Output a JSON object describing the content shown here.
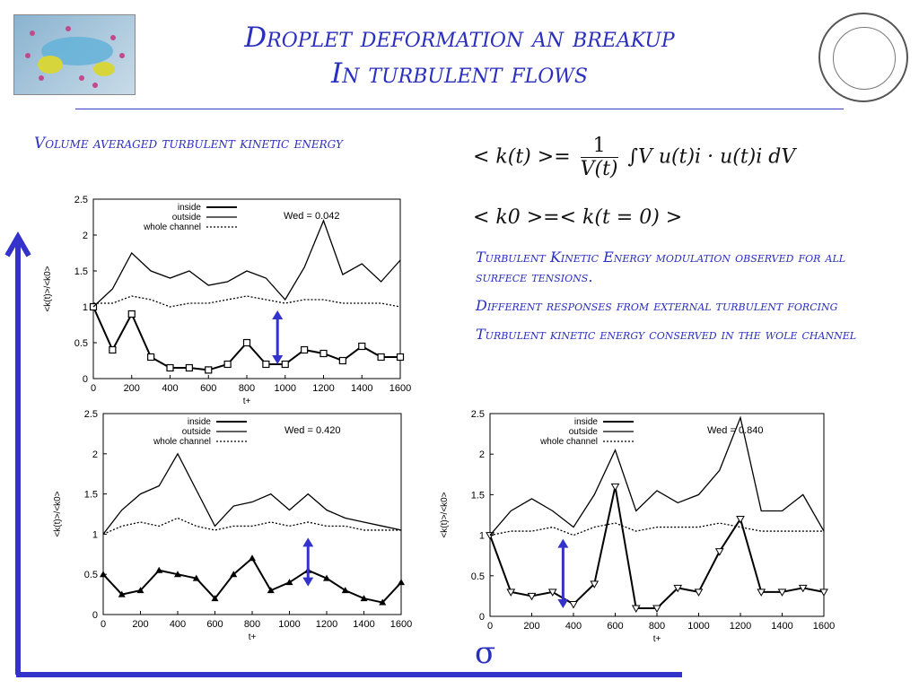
{
  "title_line1": "Droplet deformation an breakup",
  "title_line2": "In turbulent flows",
  "subtitle": "Volume averaged turbulent kinetic energy",
  "formula1_lhs": "< k(t) >=",
  "formula1_num": "1",
  "formula1_den": "V(t)",
  "formula1_rhs": "∫V u(t)i · u(t)i dV",
  "formula2": "< k0 >=< k(t = 0) >",
  "bullets": [
    "Turbulent Kinetic Energy  modulation observed for  all surfece tensions.",
    "Different responses from external turbulent forcing",
    "Turbulent kinetic energy conserved in the wole channel"
  ],
  "sigma": "σ",
  "colors": {
    "accent": "#2b2fbd",
    "arrow": "#3333cc"
  },
  "chart_data": [
    {
      "type": "line",
      "annotation": "Wed = 0.042",
      "ylabel": "<k(t)>/<k0>",
      "xlabel": "t+",
      "xlim": [
        0,
        1600
      ],
      "ylim": [
        0,
        2.5
      ],
      "xticks": [
        "0",
        "200",
        "400",
        "600",
        "800",
        "1000",
        "1200",
        "1400",
        "1600"
      ],
      "yticks": [
        "0",
        "0.5",
        "1",
        "1.5",
        "2",
        "2.5"
      ],
      "legend": [
        "inside",
        "outside",
        "whole channel"
      ],
      "x": [
        0,
        100,
        200,
        300,
        400,
        500,
        600,
        700,
        800,
        900,
        1000,
        1100,
        1200,
        1300,
        1400,
        1500,
        1600
      ],
      "series": [
        {
          "name": "inside",
          "values": [
            1.0,
            0.4,
            0.9,
            0.3,
            0.15,
            0.15,
            0.12,
            0.2,
            0.5,
            0.2,
            0.2,
            0.4,
            0.35,
            0.25,
            0.45,
            0.3,
            0.3
          ]
        },
        {
          "name": "outside",
          "values": [
            1.0,
            1.25,
            1.75,
            1.5,
            1.4,
            1.5,
            1.3,
            1.35,
            1.5,
            1.4,
            1.1,
            1.55,
            2.2,
            1.45,
            1.6,
            1.35,
            1.65
          ]
        },
        {
          "name": "whole channel",
          "values": [
            1.05,
            1.05,
            1.15,
            1.1,
            1.0,
            1.05,
            1.05,
            1.1,
            1.15,
            1.1,
            1.05,
            1.1,
            1.1,
            1.05,
            1.05,
            1.05,
            1.0
          ]
        }
      ]
    },
    {
      "type": "line",
      "annotation": "Wed = 0.420",
      "ylabel": "<k(t)>/<k0>",
      "xlabel": "t+",
      "xlim": [
        0,
        1600
      ],
      "ylim": [
        0,
        2.5
      ],
      "xticks": [
        "0",
        "200",
        "400",
        "600",
        "800",
        "1000",
        "1200",
        "1400",
        "1600"
      ],
      "yticks": [
        "0",
        "0.5",
        "1",
        "1.5",
        "2",
        "2.5"
      ],
      "legend": [
        "inside",
        "outside",
        "whole channel"
      ],
      "x": [
        0,
        100,
        200,
        300,
        400,
        500,
        600,
        700,
        800,
        900,
        1000,
        1100,
        1200,
        1300,
        1400,
        1500,
        1600
      ],
      "series": [
        {
          "name": "inside",
          "values": [
            0.5,
            0.25,
            0.3,
            0.55,
            0.5,
            0.45,
            0.2,
            0.5,
            0.7,
            0.3,
            0.4,
            0.55,
            0.45,
            0.3,
            0.2,
            0.15,
            0.4
          ]
        },
        {
          "name": "outside",
          "values": [
            1.0,
            1.3,
            1.5,
            1.6,
            2.0,
            1.55,
            1.1,
            1.35,
            1.4,
            1.5,
            1.3,
            1.5,
            1.3,
            1.2,
            1.15,
            1.1,
            1.05
          ]
        },
        {
          "name": "whole channel",
          "values": [
            1.0,
            1.1,
            1.15,
            1.1,
            1.2,
            1.1,
            1.05,
            1.1,
            1.1,
            1.15,
            1.1,
            1.15,
            1.1,
            1.1,
            1.05,
            1.05,
            1.05
          ]
        }
      ]
    },
    {
      "type": "line",
      "annotation": "Wed = 0.840",
      "ylabel": "<k(t)>/<k0>",
      "xlabel": "t+",
      "xlim": [
        0,
        1600
      ],
      "ylim": [
        0,
        2.5
      ],
      "xticks": [
        "0",
        "200",
        "400",
        "600",
        "800",
        "1000",
        "1200",
        "1400",
        "1600"
      ],
      "yticks": [
        "0",
        "0.5",
        "1",
        "1.5",
        "2",
        "2.5"
      ],
      "legend": [
        "inside",
        "outside",
        "whole channel"
      ],
      "x": [
        0,
        100,
        200,
        300,
        400,
        500,
        600,
        700,
        800,
        900,
        1000,
        1100,
        1200,
        1300,
        1400,
        1500,
        1600
      ],
      "series": [
        {
          "name": "inside",
          "values": [
            1.0,
            0.3,
            0.25,
            0.3,
            0.15,
            0.4,
            1.6,
            0.1,
            0.1,
            0.35,
            0.3,
            0.8,
            1.2,
            0.3,
            0.3,
            0.35,
            0.3
          ]
        },
        {
          "name": "outside",
          "values": [
            1.0,
            1.3,
            1.45,
            1.3,
            1.1,
            1.5,
            2.05,
            1.3,
            1.55,
            1.4,
            1.5,
            1.8,
            2.45,
            1.3,
            1.3,
            1.5,
            1.05
          ]
        },
        {
          "name": "whole channel",
          "values": [
            1.0,
            1.05,
            1.05,
            1.1,
            1.0,
            1.1,
            1.15,
            1.05,
            1.1,
            1.1,
            1.1,
            1.15,
            1.1,
            1.05,
            1.05,
            1.05,
            1.05
          ]
        }
      ]
    }
  ]
}
